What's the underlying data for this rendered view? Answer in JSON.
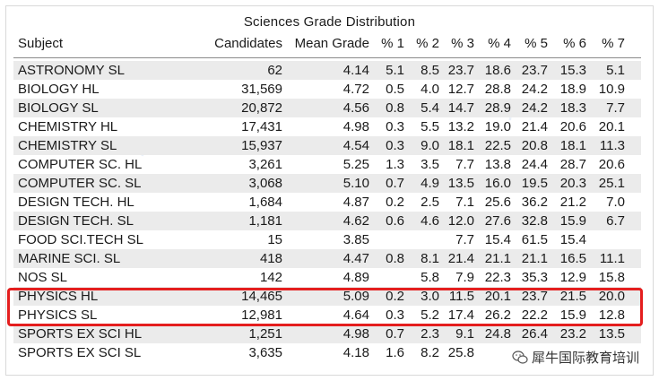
{
  "title": "Sciences Grade Distribution",
  "headers": [
    "Subject",
    "Candidates",
    "Mean Grade",
    "% 1",
    "% 2",
    "% 3",
    "% 4",
    "% 5",
    "% 6",
    "% 7"
  ],
  "rows": [
    [
      "ASTRONOMY SL",
      "62",
      "4.14",
      "5.1",
      "8.5",
      "23.7",
      "18.6",
      "23.7",
      "15.3",
      "5.1"
    ],
    [
      "BIOLOGY HL",
      "31,569",
      "4.72",
      "0.5",
      "4.0",
      "12.7",
      "28.8",
      "24.2",
      "18.9",
      "10.9"
    ],
    [
      "BIOLOGY SL",
      "20,872",
      "4.56",
      "0.8",
      "5.4",
      "14.7",
      "28.9",
      "24.2",
      "18.3",
      "7.7"
    ],
    [
      "CHEMISTRY HL",
      "17,431",
      "4.98",
      "0.3",
      "5.5",
      "13.2",
      "19.0",
      "21.4",
      "20.6",
      "20.1"
    ],
    [
      "CHEMISTRY SL",
      "15,937",
      "4.54",
      "0.3",
      "9.0",
      "18.1",
      "22.5",
      "20.8",
      "18.1",
      "11.3"
    ],
    [
      "COMPUTER SC. HL",
      "3,261",
      "5.25",
      "1.3",
      "3.5",
      "7.7",
      "13.8",
      "24.4",
      "28.7",
      "20.6"
    ],
    [
      "COMPUTER SC. SL",
      "3,068",
      "5.10",
      "0.7",
      "4.9",
      "13.5",
      "16.0",
      "19.5",
      "20.3",
      "25.1"
    ],
    [
      "DESIGN TECH. HL",
      "1,684",
      "4.87",
      "0.2",
      "2.5",
      "7.1",
      "25.6",
      "36.2",
      "21.2",
      "7.0"
    ],
    [
      "DESIGN TECH. SL",
      "1,181",
      "4.62",
      "0.6",
      "4.6",
      "12.0",
      "27.6",
      "32.8",
      "15.9",
      "6.7"
    ],
    [
      "FOOD SCI.TECH SL",
      "15",
      "3.85",
      "",
      "",
      "7.7",
      "15.4",
      "61.5",
      "15.4",
      ""
    ],
    [
      "MARINE SCI. SL",
      "418",
      "4.47",
      "0.8",
      "8.1",
      "21.4",
      "21.1",
      "21.1",
      "16.5",
      "11.1"
    ],
    [
      "NOS SL",
      "142",
      "4.89",
      "",
      "5.8",
      "7.9",
      "22.3",
      "35.3",
      "12.9",
      "15.8"
    ],
    [
      "PHYSICS HL",
      "14,465",
      "5.09",
      "0.2",
      "3.0",
      "11.5",
      "20.1",
      "23.7",
      "21.5",
      "20.0"
    ],
    [
      "PHYSICS SL",
      "12,981",
      "4.64",
      "0.3",
      "5.2",
      "17.4",
      "26.2",
      "22.2",
      "15.9",
      "12.8"
    ],
    [
      "SPORTS EX SCI HL",
      "1,251",
      "4.98",
      "0.7",
      "2.3",
      "9.1",
      "24.8",
      "26.4",
      "23.2",
      "13.5"
    ],
    [
      "SPORTS EX SCI SL",
      "3,635",
      "4.18",
      "1.6",
      "8.2",
      "25.8",
      "",
      "",
      "",
      ""
    ]
  ],
  "highlight_color": "#e41e1e",
  "stripe_color": "#ebebeb",
  "watermark_text": "犀牛国际教育培训",
  "icon": "wechat-bubble-icon"
}
